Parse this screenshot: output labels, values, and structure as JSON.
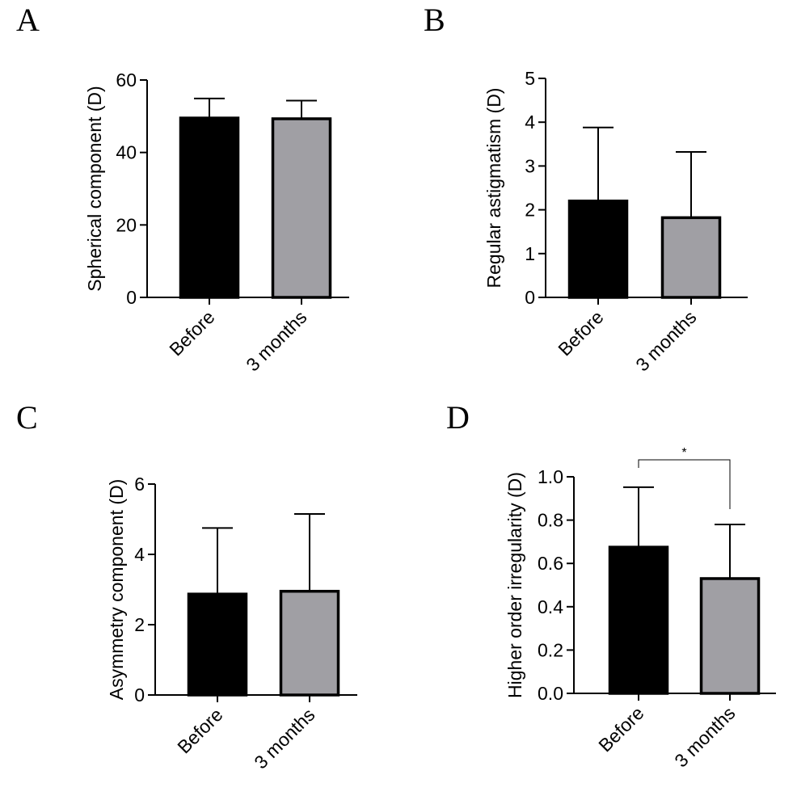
{
  "chart_data": [
    {
      "panel": "A",
      "type": "bar",
      "ylabel": "Spherical component (D)",
      "categories": [
        "Before",
        "3 months"
      ],
      "values": [
        49.5,
        49.3
      ],
      "error_upper": [
        5.4,
        5.0
      ],
      "ylim": [
        0,
        60
      ],
      "yticks": [
        0,
        20,
        40,
        60
      ],
      "ytick_labels": [
        "0",
        "20",
        "40",
        "60"
      ],
      "colors": [
        "#000000",
        "#a09fa4"
      ]
    },
    {
      "panel": "B",
      "type": "bar",
      "ylabel": "Regular astigmatism (D)",
      "categories": [
        "Before",
        "3 months"
      ],
      "values": [
        2.2,
        1.82
      ],
      "error_upper": [
        1.68,
        1.5
      ],
      "ylim": [
        0,
        5
      ],
      "yticks": [
        0,
        1,
        2,
        3,
        4,
        5
      ],
      "ytick_labels": [
        "0",
        "1",
        "2",
        "3",
        "4",
        "5"
      ],
      "colors": [
        "#000000",
        "#a09fa4"
      ]
    },
    {
      "panel": "C",
      "type": "bar",
      "ylabel": "Asymmetry component (D)",
      "categories": [
        "Before",
        "3 months"
      ],
      "values": [
        2.87,
        2.95
      ],
      "error_upper": [
        1.88,
        2.2
      ],
      "ylim": [
        0,
        6
      ],
      "yticks": [
        0,
        2,
        4,
        6
      ],
      "ytick_labels": [
        "0",
        "2",
        "4",
        "6"
      ],
      "colors": [
        "#000000",
        "#a09fa4"
      ]
    },
    {
      "panel": "D",
      "type": "bar",
      "ylabel": "Higher order irregularity (D)",
      "categories": [
        "Before",
        "3 months"
      ],
      "values": [
        0.675,
        0.53
      ],
      "error_upper": [
        0.277,
        0.25
      ],
      "ylim": [
        0,
        1.0
      ],
      "yticks": [
        0,
        0.2,
        0.4,
        0.6,
        0.8,
        1.0
      ],
      "ytick_labels": [
        "0.0",
        "0.2",
        "0.4",
        "0.6",
        "0.8",
        "1.0"
      ],
      "colors": [
        "#000000",
        "#a09fa4"
      ],
      "significance": {
        "label": "*",
        "between": [
          0,
          1
        ]
      }
    }
  ]
}
